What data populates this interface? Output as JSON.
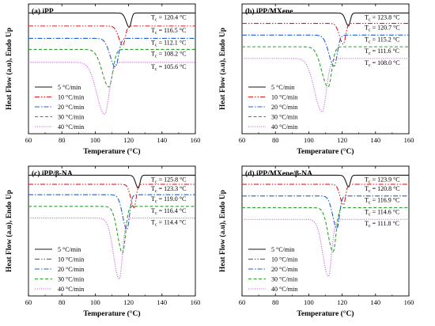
{
  "figure": {
    "background": "#ffffff"
  },
  "series_styles": [
    {
      "color": "#1a1a1a",
      "dash": ""
    },
    {
      "color": "#e31a1c",
      "dash": "6 2 1.5 2 1.5 2"
    },
    {
      "color": "#1f5fd6",
      "dash": "6 2 1.5 2"
    },
    {
      "color": "#2ca02c",
      "dash": "4 2.5"
    },
    {
      "color": "#cc66dd",
      "dash": "1.2 1.5"
    }
  ],
  "chart_data": [
    {
      "type": "line",
      "title": "(a) iPP",
      "xlabel": "Temperature (°C)",
      "ylabel": "Heat Flow (a.u), Endo Up",
      "xlim": [
        60,
        160
      ],
      "xticks": [
        60,
        80,
        100,
        120,
        140,
        160
      ],
      "legend_position": "bottom-left",
      "series": [
        {
          "name": "5 °C/min",
          "baseline": 0.93,
          "depth": 0.11,
          "peak_x": 120.4,
          "width_left": 2.6,
          "width_right": 1.6,
          "tc_label": "120.4 °C"
        },
        {
          "name": "10 °C/min",
          "baseline": 0.83,
          "depth": 0.15,
          "peak_x": 116.5,
          "width_left": 3.4,
          "width_right": 2.0,
          "tc_label": "116.5 °C"
        },
        {
          "name": "20 °C/min",
          "baseline": 0.735,
          "depth": 0.22,
          "peak_x": 112.1,
          "width_left": 4.5,
          "width_right": 2.6,
          "tc_label": "112.1 °C"
        },
        {
          "name": "30 °C/min",
          "baseline": 0.65,
          "depth": 0.29,
          "peak_x": 108.2,
          "width_left": 5.6,
          "width_right": 3.2,
          "tc_label": "108.2 °C"
        },
        {
          "name": "40 °C/min",
          "baseline": 0.55,
          "depth": 0.4,
          "peak_x": 105.6,
          "width_left": 6.6,
          "width_right": 3.8,
          "tc_label": "105.6 °C"
        }
      ]
    },
    {
      "type": "line",
      "title": "(b) iPP/MXene",
      "xlabel": "Temperature (°C)",
      "ylabel": "Heat Flow (a.u), Endo Up",
      "xlim": [
        60,
        160
      ],
      "xticks": [
        60,
        80,
        100,
        120,
        140,
        160
      ],
      "legend_position": "bottom-left",
      "series": [
        {
          "name": "5 °C/min",
          "baseline": 0.93,
          "depth": 0.1,
          "peak_x": 123.8,
          "width_left": 2.4,
          "width_right": 1.5,
          "tc_label": "123.8 °C"
        },
        {
          "name": "10 °C/min",
          "baseline": 0.85,
          "depth": 0.16,
          "peak_x": 120.7,
          "width_left": 3.2,
          "width_right": 1.9,
          "tc_label": "120.7 °C"
        },
        {
          "name": "20 °C/min",
          "baseline": 0.76,
          "depth": 0.24,
          "peak_x": 115.2,
          "width_left": 4.4,
          "width_right": 2.6,
          "tc_label": "115.2 °C"
        },
        {
          "name": "30 °C/min",
          "baseline": 0.67,
          "depth": 0.31,
          "peak_x": 111.6,
          "width_left": 5.4,
          "width_right": 3.0,
          "tc_label": "111.6 °C"
        },
        {
          "name": "40 °C/min",
          "baseline": 0.58,
          "depth": 0.41,
          "peak_x": 108.0,
          "width_left": 6.4,
          "width_right": 3.6,
          "tc_label": "108.0 °C"
        }
      ]
    },
    {
      "type": "line",
      "title": "(c) iPP/β-NA",
      "xlabel": "Temperature (°C)",
      "ylabel": "Heat Flow (a.u), Endo Up",
      "xlim": [
        60,
        160
      ],
      "xticks": [
        60,
        80,
        100,
        120,
        140,
        160
      ],
      "legend_position": "bottom-left",
      "series": [
        {
          "name": "5 °C/min",
          "baseline": 0.93,
          "depth": 0.1,
          "peak_x": 125.8,
          "width_left": 2.2,
          "width_right": 1.4,
          "tc_label": "125.8 °C"
        },
        {
          "name": "10 °C/min",
          "baseline": 0.86,
          "depth": 0.18,
          "peak_x": 123.3,
          "width_left": 2.8,
          "width_right": 1.7,
          "tc_label": "123.3 °C"
        },
        {
          "name": "20 °C/min",
          "baseline": 0.78,
          "depth": 0.27,
          "peak_x": 119.0,
          "width_left": 3.6,
          "width_right": 2.1,
          "tc_label": "119.0 °C"
        },
        {
          "name": "30 °C/min",
          "baseline": 0.69,
          "depth": 0.36,
          "peak_x": 116.4,
          "width_left": 4.2,
          "width_right": 2.4,
          "tc_label": "116.4 °C"
        },
        {
          "name": "40 °C/min",
          "baseline": 0.6,
          "depth": 0.47,
          "peak_x": 114.4,
          "width_left": 4.8,
          "width_right": 2.7,
          "tc_label": "114.4 °C"
        }
      ]
    },
    {
      "type": "line",
      "title": "(d) iPP/MXene/β-NA",
      "xlabel": "Temperature (°C)",
      "ylabel": "Heat Flow (a.u), Endo Up",
      "xlim": [
        60,
        160
      ],
      "xticks": [
        60,
        80,
        100,
        120,
        140,
        160
      ],
      "legend_position": "bottom-left",
      "series": [
        {
          "name": "5 °C/min",
          "baseline": 0.93,
          "depth": 0.09,
          "peak_x": 123.9,
          "width_left": 2.2,
          "width_right": 1.4,
          "tc_label": "123.9 °C"
        },
        {
          "name": "10 °C/min",
          "baseline": 0.86,
          "depth": 0.16,
          "peak_x": 120.8,
          "width_left": 2.8,
          "width_right": 1.7,
          "tc_label": "120.8 °C"
        },
        {
          "name": "20 °C/min",
          "baseline": 0.77,
          "depth": 0.25,
          "peak_x": 116.9,
          "width_left": 3.6,
          "width_right": 2.1,
          "tc_label": "116.9 °C"
        },
        {
          "name": "30 °C/min",
          "baseline": 0.68,
          "depth": 0.34,
          "peak_x": 114.6,
          "width_left": 4.2,
          "width_right": 2.4,
          "tc_label": "114.6 °C"
        },
        {
          "name": "40 °C/min",
          "baseline": 0.59,
          "depth": 0.44,
          "peak_x": 111.8,
          "width_left": 4.8,
          "width_right": 2.7,
          "tc_label": "111.8 °C"
        }
      ]
    }
  ]
}
